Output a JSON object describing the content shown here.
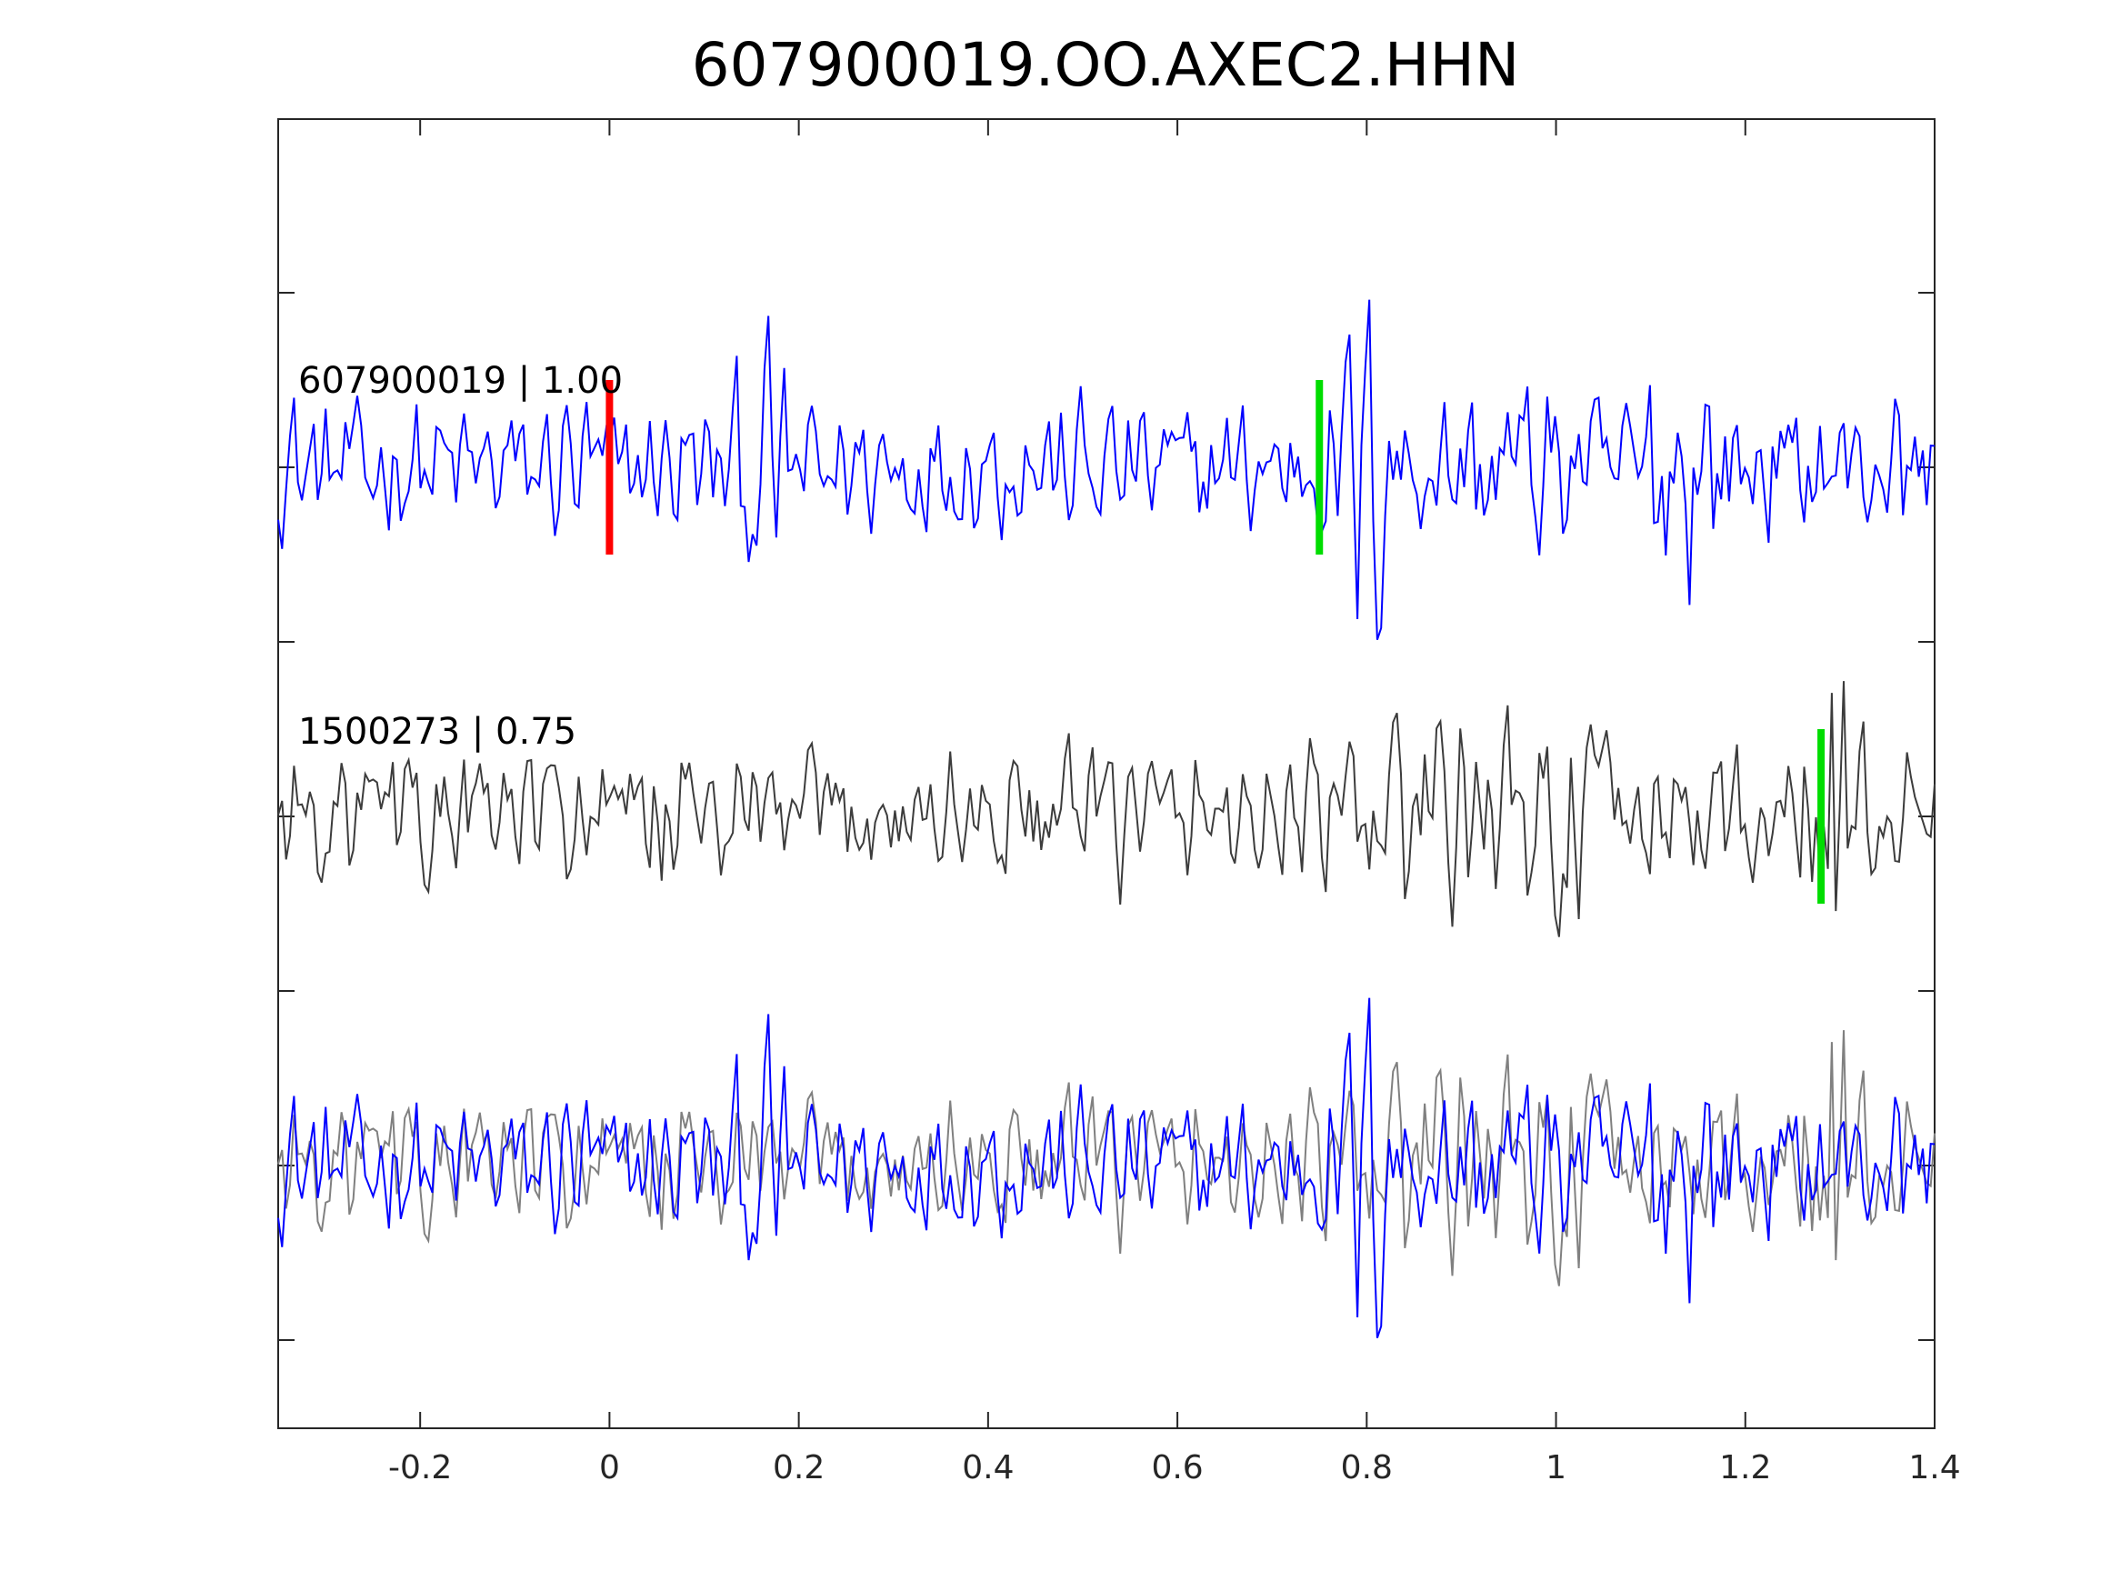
{
  "chart_data": {
    "type": "line",
    "title": "607900019.OO.AXEC2.HHN",
    "xlabel": "",
    "ylabel": "",
    "xlim": [
      -0.35,
      1.4
    ],
    "x_ticks": [
      -0.2,
      0,
      0.2,
      0.4,
      0.6,
      0.8,
      1,
      1.2,
      1.4
    ],
    "x_tick_labels": [
      "-0.2",
      "0",
      "0.2",
      "0.4",
      "0.6",
      "0.8",
      "1",
      "1.2",
      "1.4"
    ],
    "y_tick_labels_shown": false,
    "grid": false,
    "colors": {
      "template": "#0000ff",
      "detection": "#3c3c3c",
      "overlay_detection": "#808080",
      "p_pick": "#ff0000",
      "s_pick": "#00dd00",
      "axes": "#262626"
    },
    "traces": [
      {
        "label": "607900019 | 1.00",
        "role": "template",
        "color": "#0000ff"
      },
      {
        "label": "1500273 | 0.75",
        "role": "detection",
        "color": "#3c3c3c"
      }
    ],
    "picks": [
      {
        "trace": 0,
        "x": 0.0,
        "color": "#ff0000"
      },
      {
        "trace": 0,
        "x": 0.75,
        "color": "#00dd00"
      },
      {
        "trace": 1,
        "x": 1.28,
        "color": "#00dd00"
      }
    ]
  }
}
